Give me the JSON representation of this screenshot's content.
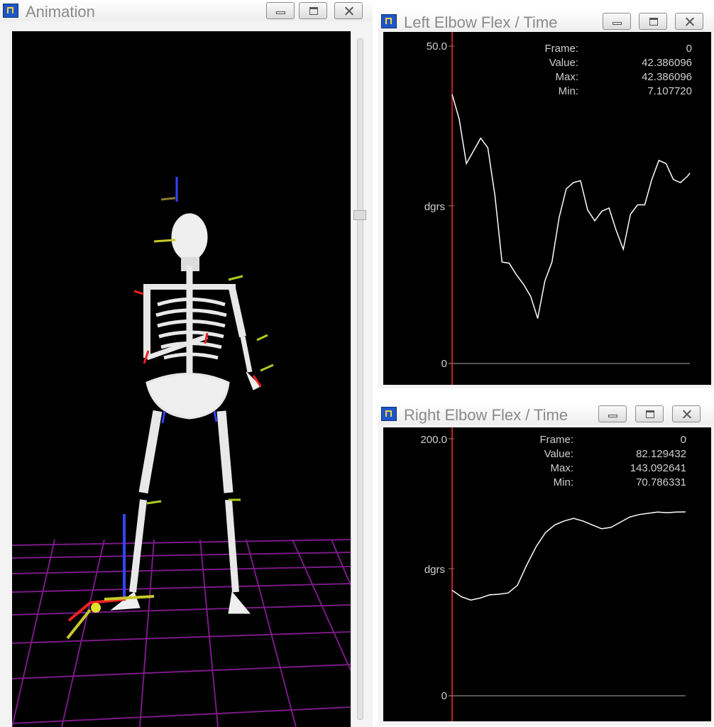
{
  "windows": {
    "animation": {
      "title": "Animation",
      "controls": [
        "minimize",
        "maximize",
        "close"
      ]
    },
    "left_elbow": {
      "title": "Left Elbow Flex / Time",
      "y_max_label": "50.0",
      "y_unit_label": "dgrs",
      "y_zero_label": "0",
      "readout": {
        "frame_label": "Frame:",
        "frame_value": "0",
        "value_label": "Value:",
        "value_value": "42.386096",
        "max_label": "Max:",
        "max_value": "42.386096",
        "min_label": "Min:",
        "min_value": "7.107720"
      }
    },
    "right_elbow": {
      "title": "Right Elbow Flex / Time",
      "y_max_label": "200.0",
      "y_unit_label": "dgrs",
      "y_zero_label": "0",
      "readout": {
        "frame_label": "Frame:",
        "frame_value": "0",
        "value_label": "Value:",
        "value_value": "82.129432",
        "max_label": "Max:",
        "max_value": "143.092641",
        "min_label": "Min:",
        "min_value": "70.786331"
      }
    }
  },
  "colors": {
    "plot_bg": "#000000",
    "curve": "#ffffff",
    "cursor": "#ff2a2a",
    "grid": "#7a1a86"
  },
  "chart_data": [
    {
      "type": "line",
      "title": "Left Elbow Flex / Time",
      "ylabel": "dgrs",
      "ylim": [
        0,
        50
      ],
      "x": [
        0,
        3,
        6,
        9,
        12,
        15,
        18,
        21,
        24,
        27,
        30,
        33,
        36,
        39,
        42,
        45,
        48,
        51,
        54,
        57,
        60,
        63,
        66,
        69,
        72,
        75,
        78,
        81,
        84,
        87,
        90,
        93,
        96,
        99,
        100
      ],
      "series": [
        {
          "values": [
            42.4,
            38.5,
            31.5,
            33.5,
            35.5,
            34.0,
            26.5,
            16.0,
            15.8,
            14.0,
            12.5,
            10.6,
            7.1,
            13.0,
            16.0,
            23.0,
            27.5,
            28.5,
            28.8,
            24.2,
            22.5,
            24.0,
            24.5,
            21.0,
            18.0,
            23.5,
            25.0,
            25.0,
            29.0,
            32.0,
            31.5,
            29.0,
            28.5,
            29.5,
            30.0
          ]
        }
      ]
    },
    {
      "type": "line",
      "title": "Right Elbow Flex / Time",
      "ylabel": "dgrs",
      "ylim": [
        0,
        200
      ],
      "x": [
        0,
        4,
        8,
        12,
        16,
        20,
        24,
        28,
        32,
        36,
        40,
        44,
        48,
        52,
        56,
        60,
        64,
        68,
        72,
        76,
        80,
        84,
        88,
        92,
        96,
        100
      ],
      "series": [
        {
          "values": [
            82.1,
            77.0,
            74.5,
            76.0,
            78.5,
            79.0,
            80.0,
            86.0,
            102.0,
            116.0,
            127.0,
            133.0,
            136.0,
            138.0,
            136.0,
            133.0,
            130.0,
            131.0,
            135.0,
            139.0,
            141.0,
            142.0,
            143.0,
            142.5,
            143.0,
            143.1
          ]
        }
      ]
    }
  ]
}
